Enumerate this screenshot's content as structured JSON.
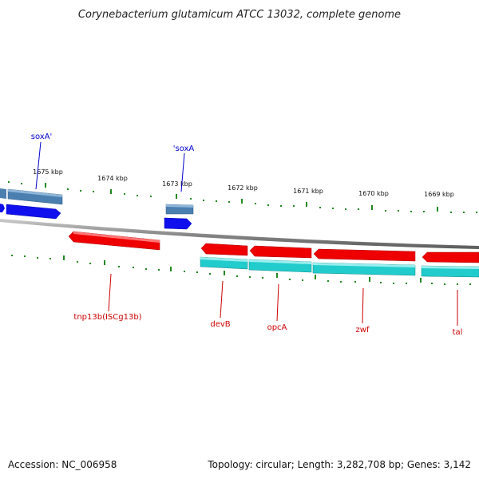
{
  "title": "Corynebacterium glutamicum ATCC 13032, complete genome",
  "colors": {
    "forward_gene": "#1010ee",
    "forward_cds": "#4a7fb0",
    "reverse_gene": "#ee0000",
    "reverse_cds": "#22cccc",
    "backbone": "#888888",
    "tick": "#228822",
    "label_blue": "#0000cc",
    "label_red": "#cc0000"
  },
  "ticks": [
    "1675 kbp",
    "1674 kbp",
    "1673 kbp",
    "1672 kbp",
    "1671 kbp",
    "1670 kbp",
    "1669 kbp"
  ],
  "forward_labels": [
    "soxA'",
    "'soxA"
  ],
  "reverse_labels": [
    "tnp13b(ISCg13b)",
    "devB",
    "opcA",
    "zwf",
    "tal"
  ],
  "footer": {
    "accession": "Accession: NC_006958",
    "summary": "Topology: circular; Length: 3,282,708 bp; Genes: 3,142"
  }
}
